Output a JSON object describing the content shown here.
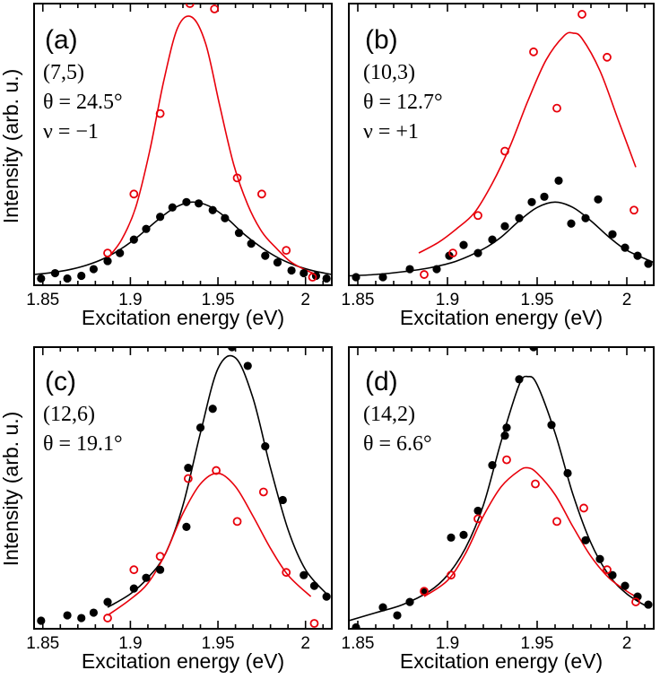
{
  "chart_data": [
    {
      "type": "scatter",
      "panel_label": "(a)",
      "annotations": [
        "(7,5)",
        "θ = 24.5°",
        "ν = −1"
      ],
      "xlabel": "Excitation energy (eV)",
      "ylabel": "Intensity (arb. u.)",
      "xlim": [
        1.845,
        2.015
      ],
      "ylim": [
        0,
        1.05
      ],
      "xticks": [
        1.85,
        1.9,
        1.95,
        2.0
      ],
      "xtick_labels": [
        "1.85",
        "1.9",
        "1.95",
        "2"
      ],
      "series": [
        {
          "name": "black data",
          "marker": "filled-circle",
          "color": "#000000",
          "x": [
            1.849,
            1.857,
            1.864,
            1.872,
            1.879,
            1.887,
            1.894,
            1.902,
            1.909,
            1.917,
            1.924,
            1.932,
            1.939,
            1.947,
            1.954,
            1.962,
            1.969,
            1.977,
            1.984,
            1.992,
            1.999,
            2.006,
            2.012
          ],
          "y": [
            0.025,
            0.045,
            0.025,
            0.035,
            0.06,
            0.09,
            0.12,
            0.17,
            0.21,
            0.255,
            0.29,
            0.31,
            0.305,
            0.28,
            0.25,
            0.195,
            0.155,
            0.11,
            0.085,
            0.055,
            0.045,
            0.035,
            0.025
          ]
        },
        {
          "name": "black fit",
          "line": true,
          "color": "#000000",
          "x": [
            1.845,
            1.855,
            1.865,
            1.875,
            1.885,
            1.895,
            1.905,
            1.915,
            1.925,
            1.935,
            1.945,
            1.955,
            1.965,
            1.975,
            1.985,
            1.995,
            2.005,
            2.015
          ],
          "y": [
            0.04,
            0.047,
            0.058,
            0.075,
            0.1,
            0.137,
            0.185,
            0.24,
            0.288,
            0.31,
            0.295,
            0.25,
            0.19,
            0.14,
            0.1,
            0.072,
            0.053,
            0.04
          ]
        },
        {
          "name": "red data",
          "marker": "open-circle",
          "color": "#e8000b",
          "x": [
            1.887,
            1.902,
            1.917,
            1.934,
            1.948,
            1.961,
            1.975,
            1.989,
            2.004
          ],
          "y": [
            0.12,
            0.34,
            0.64,
            1.05,
            1.03,
            0.4,
            0.34,
            0.13,
            0.03
          ]
        },
        {
          "name": "red fit",
          "line": true,
          "color": "#e8000b",
          "x": [
            1.887,
            1.895,
            1.903,
            1.911,
            1.919,
            1.927,
            1.935,
            1.943,
            1.951,
            1.959,
            1.967,
            1.975,
            1.983,
            1.991,
            1.999,
            2.006
          ],
          "y": [
            0.1,
            0.17,
            0.29,
            0.5,
            0.76,
            0.96,
            1.0,
            0.9,
            0.67,
            0.45,
            0.3,
            0.2,
            0.14,
            0.09,
            0.06,
            0.04
          ]
        }
      ]
    },
    {
      "type": "scatter",
      "panel_label": "(b)",
      "annotations": [
        "(10,3)",
        "θ = 12.7°",
        "ν = +1"
      ],
      "xlabel": "Excitation energy (eV)",
      "ylabel": "",
      "xlim": [
        1.845,
        2.015
      ],
      "ylim": [
        0,
        1.05
      ],
      "xticks": [
        1.85,
        1.9,
        1.95,
        2.0
      ],
      "xtick_labels": [
        "1.85",
        "1.9",
        "1.95",
        "2"
      ],
      "series": [
        {
          "name": "black data",
          "marker": "filled-circle",
          "color": "#000000",
          "x": [
            1.849,
            1.864,
            1.879,
            1.894,
            1.901,
            1.909,
            1.917,
            1.925,
            1.932,
            1.94,
            1.947,
            1.954,
            1.962,
            1.969,
            1.977,
            1.984,
            1.992,
            1.999,
            2.006,
            2.012
          ],
          "y": [
            0.03,
            0.03,
            0.06,
            0.06,
            0.11,
            0.15,
            0.12,
            0.17,
            0.22,
            0.25,
            0.31,
            0.33,
            0.39,
            0.23,
            0.25,
            0.32,
            0.19,
            0.14,
            0.11,
            0.08
          ]
        },
        {
          "name": "black fit",
          "line": true,
          "color": "#000000",
          "x": [
            1.845,
            1.86,
            1.875,
            1.89,
            1.905,
            1.92,
            1.93,
            1.94,
            1.95,
            1.96,
            1.97,
            1.98,
            1.99,
            2.0,
            2.015
          ],
          "y": [
            0.035,
            0.04,
            0.05,
            0.065,
            0.09,
            0.135,
            0.18,
            0.24,
            0.29,
            0.31,
            0.29,
            0.24,
            0.18,
            0.13,
            0.085
          ]
        },
        {
          "name": "red data",
          "marker": "open-circle",
          "color": "#e8000b",
          "x": [
            1.887,
            1.903,
            1.917,
            1.932,
            1.948,
            1.961,
            1.975,
            1.989,
            2.004
          ],
          "y": [
            0.04,
            0.12,
            0.26,
            0.5,
            0.87,
            0.66,
            1.01,
            0.85,
            0.28
          ]
        },
        {
          "name": "red fit",
          "line": true,
          "color": "#e8000b",
          "x": [
            1.884,
            1.895,
            1.905,
            1.915,
            1.925,
            1.935,
            1.945,
            1.955,
            1.965,
            1.97,
            1.975,
            1.985,
            1.995,
            2.005
          ],
          "y": [
            0.12,
            0.16,
            0.21,
            0.27,
            0.38,
            0.52,
            0.69,
            0.84,
            0.93,
            0.94,
            0.92,
            0.8,
            0.62,
            0.44
          ]
        }
      ]
    },
    {
      "type": "scatter",
      "panel_label": "(c)",
      "annotations": [
        "(12,6)",
        "θ = 19.1°"
      ],
      "xlabel": "Excitation energy (eV)",
      "ylabel": "Intensity (arb. u.)",
      "xlim": [
        1.845,
        2.015
      ],
      "ylim": [
        0,
        1.05
      ],
      "xticks": [
        1.85,
        1.9,
        1.95,
        2.0
      ],
      "xtick_labels": [
        "1.85",
        "1.9",
        "1.95",
        "2"
      ],
      "series": [
        {
          "name": "black data",
          "marker": "filled-circle",
          "color": "#000000",
          "x": [
            1.849,
            1.864,
            1.872,
            1.879,
            1.887,
            1.902,
            1.909,
            1.917,
            1.932,
            1.933,
            1.94,
            1.947,
            1.958,
            1.967,
            1.977,
            1.987,
            1.999,
            2.005,
            2.012
          ],
          "y": [
            0.03,
            0.05,
            0.04,
            0.06,
            0.1,
            0.15,
            0.19,
            0.22,
            0.38,
            0.6,
            0.75,
            0.82,
            1.05,
            0.98,
            0.68,
            0.48,
            0.2,
            0.16,
            0.12
          ]
        },
        {
          "name": "black fit",
          "line": true,
          "color": "#000000",
          "x": [
            1.887,
            1.9,
            1.91,
            1.92,
            1.93,
            1.94,
            1.95,
            1.96,
            1.97,
            1.98,
            1.99,
            2.0,
            2.012
          ],
          "y": [
            0.08,
            0.13,
            0.19,
            0.28,
            0.46,
            0.73,
            0.97,
            1.01,
            0.86,
            0.6,
            0.37,
            0.22,
            0.13
          ]
        },
        {
          "name": "red data",
          "marker": "open-circle",
          "color": "#e8000b",
          "x": [
            1.887,
            1.902,
            1.917,
            1.933,
            1.949,
            1.961,
            1.976,
            1.989,
            2.005
          ],
          "y": [
            0.04,
            0.22,
            0.27,
            0.56,
            0.59,
            0.4,
            0.51,
            0.21,
            0.02
          ]
        },
        {
          "name": "red fit",
          "line": true,
          "color": "#e8000b",
          "x": [
            1.887,
            1.9,
            1.91,
            1.92,
            1.93,
            1.94,
            1.95,
            1.96,
            1.97,
            1.98,
            1.99,
            2.003
          ],
          "y": [
            0.05,
            0.11,
            0.17,
            0.28,
            0.43,
            0.54,
            0.58,
            0.53,
            0.42,
            0.3,
            0.2,
            0.12
          ]
        }
      ]
    },
    {
      "type": "scatter",
      "panel_label": "(d)",
      "annotations": [
        "(14,2)",
        "θ = 6.6°"
      ],
      "xlabel": "Excitation energy (eV)",
      "ylabel": "",
      "xlim": [
        1.845,
        2.015
      ],
      "ylim": [
        0,
        1.05
      ],
      "xticks": [
        1.85,
        1.9,
        1.95,
        2.0
      ],
      "xtick_labels": [
        "1.85",
        "1.9",
        "1.95",
        "2"
      ],
      "series": [
        {
          "name": "black data",
          "marker": "filled-circle",
          "color": "#000000",
          "x": [
            1.849,
            1.864,
            1.872,
            1.879,
            1.887,
            1.902,
            1.909,
            1.917,
            1.925,
            1.932,
            1.933,
            1.94,
            1.948,
            1.958,
            1.967,
            1.977,
            1.985,
            1.992,
            1.999,
            2.006,
            2.012
          ],
          "y": [
            0.005,
            0.08,
            0.05,
            0.1,
            0.14,
            0.34,
            0.35,
            0.44,
            0.61,
            0.72,
            0.75,
            0.93,
            1.05,
            0.76,
            0.58,
            0.33,
            0.26,
            0.2,
            0.16,
            0.12,
            0.09
          ]
        },
        {
          "name": "black fit",
          "line": true,
          "color": "#000000",
          "x": [
            1.845,
            1.86,
            1.875,
            1.89,
            1.9,
            1.91,
            1.92,
            1.93,
            1.94,
            1.945,
            1.95,
            1.96,
            1.97,
            1.98,
            1.99,
            2.0,
            2.012
          ],
          "y": [
            0.03,
            0.06,
            0.09,
            0.14,
            0.2,
            0.3,
            0.46,
            0.7,
            0.91,
            0.94,
            0.91,
            0.73,
            0.5,
            0.32,
            0.2,
            0.13,
            0.08
          ]
        },
        {
          "name": "red data",
          "marker": "open-circle",
          "color": "#e8000b",
          "x": [
            1.887,
            1.902,
            1.917,
            1.933,
            1.949,
            1.961,
            1.976,
            1.989,
            2.005
          ],
          "y": [
            0.14,
            0.2,
            0.41,
            0.63,
            0.54,
            0.4,
            0.45,
            0.22,
            0.1
          ]
        },
        {
          "name": "red fit",
          "line": true,
          "color": "#e8000b",
          "x": [
            1.887,
            1.9,
            1.91,
            1.92,
            1.93,
            1.94,
            1.945,
            1.95,
            1.96,
            1.97,
            1.98,
            1.99,
            2.0,
            2.005
          ],
          "y": [
            0.12,
            0.18,
            0.28,
            0.42,
            0.53,
            0.59,
            0.6,
            0.58,
            0.5,
            0.38,
            0.27,
            0.19,
            0.14,
            0.12
          ]
        }
      ]
    }
  ]
}
